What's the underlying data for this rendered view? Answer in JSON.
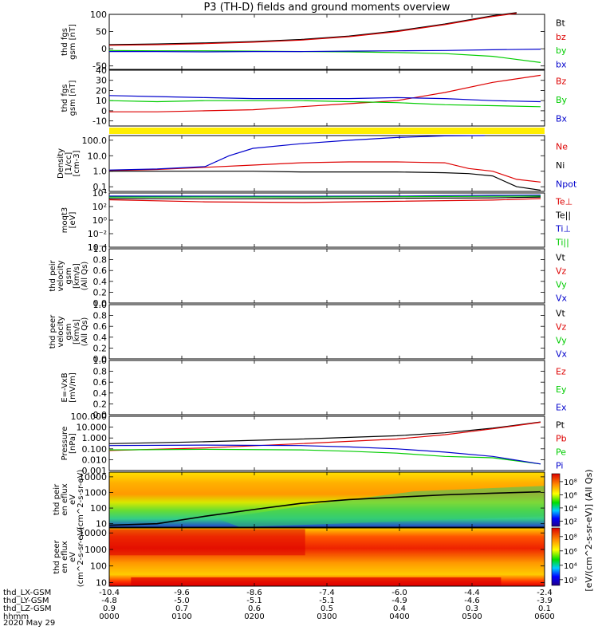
{
  "title": "P3 (TH-D) fields and ground moments overview",
  "footer": {
    "rows": [
      {
        "label": "thd_LX-GSM",
        "values": [
          "-10.4",
          "-9.6",
          "-8.6",
          "-7.4",
          "-6.0",
          "-4.4",
          "-2.4"
        ]
      },
      {
        "label": "thd_LY-GSM",
        "values": [
          "-4.8",
          "-5.0",
          "-5.1",
          "-5.1",
          "-4.9",
          "-4.6",
          "-3.9"
        ]
      },
      {
        "label": "thd_LZ-GSM",
        "values": [
          "0.9",
          "0.7",
          "0.6",
          "0.5",
          "0.4",
          "0.3",
          "0.1"
        ]
      },
      {
        "label": "hhmm",
        "values": [
          "0000",
          "0100",
          "0200",
          "0300",
          "0400",
          "0500",
          "0600"
        ]
      }
    ],
    "date": "2020 May 29"
  },
  "colors": {
    "black": "#000000",
    "red": "#dd0000",
    "green": "#00cc00",
    "blue": "#0000cc",
    "yellow": "#ffee00"
  },
  "colorbar": {
    "label": "[eV/(cm^2-s-sr-eV)] (All Qs)",
    "panel1_ticks": [
      "10^8",
      "10^6",
      "10^4",
      "10^2"
    ],
    "panel2_ticks": [
      "10^8",
      "10^6",
      "10^4",
      "10^2"
    ]
  },
  "chart_data": [
    {
      "type": "line",
      "ylabel": "thd fgs gsm [nT]",
      "ylim": [
        -60,
        100
      ],
      "yticks": [
        "100",
        "50",
        "0",
        "-50"
      ],
      "series": [
        {
          "name": "Bt",
          "color": "black",
          "x": [
            0,
            60,
            120,
            180,
            240,
            300,
            360,
            420,
            480,
            510
          ],
          "y": [
            12,
            14,
            17,
            21,
            27,
            37,
            52,
            72,
            96,
            105
          ]
        },
        {
          "name": "bz",
          "color": "red",
          "x": [
            0,
            60,
            120,
            180,
            240,
            300,
            360,
            420,
            480,
            510
          ],
          "y": [
            10,
            12,
            15,
            19,
            25,
            35,
            50,
            70,
            94,
            103
          ]
        },
        {
          "name": "by",
          "color": "green",
          "x": [
            0,
            60,
            120,
            180,
            240,
            300,
            360,
            420,
            480,
            540
          ],
          "y": [
            -5,
            -6,
            -6,
            -7,
            -8,
            -9,
            -11,
            -14,
            -22,
            -40
          ]
        },
        {
          "name": "bx",
          "color": "blue",
          "x": [
            0,
            60,
            120,
            180,
            240,
            300,
            360,
            420,
            480,
            540
          ],
          "y": [
            -8,
            -8,
            -9,
            -8,
            -8,
            -7,
            -6,
            -5,
            -3,
            -1
          ]
        }
      ]
    },
    {
      "type": "line",
      "ylabel": "thd fgs gsm [nT]",
      "ylim": [
        -15,
        40
      ],
      "yticks": [
        "40",
        "30",
        "20",
        "10",
        "0",
        "-10"
      ],
      "series": [
        {
          "name": "Bz",
          "color": "red",
          "x": [
            0,
            60,
            120,
            180,
            240,
            300,
            360,
            420,
            480,
            540
          ],
          "y": [
            -1,
            -1,
            0,
            1,
            4,
            7,
            10,
            18,
            28,
            35
          ]
        },
        {
          "name": "By",
          "color": "green",
          "x": [
            0,
            60,
            120,
            180,
            240,
            300,
            360,
            420,
            480,
            540
          ],
          "y": [
            10,
            9,
            10,
            10,
            10,
            9,
            8,
            6,
            5,
            4
          ]
        },
        {
          "name": "Bx",
          "color": "blue",
          "x": [
            0,
            60,
            120,
            180,
            240,
            300,
            360,
            420,
            480,
            540
          ],
          "y": [
            15,
            14,
            13,
            12,
            12,
            12,
            13,
            12,
            10,
            9
          ]
        }
      ]
    },
    {
      "type": "line",
      "ylabel": "Density [1/cc] [cm-3]",
      "scale": "log",
      "ylim": [
        0.05,
        200
      ],
      "yticks": [
        "100.0",
        "10.0",
        "1.0",
        "0.1"
      ],
      "series": [
        {
          "name": "Ne",
          "color": "red",
          "x": [
            0,
            60,
            120,
            180,
            240,
            300,
            360,
            420,
            450,
            480,
            510,
            540
          ],
          "y": [
            1.1,
            1.3,
            1.8,
            2.5,
            3.5,
            4.0,
            4.0,
            3.5,
            1.5,
            1.0,
            0.3,
            0.2
          ]
        },
        {
          "name": "Ni",
          "color": "black",
          "x": [
            0,
            60,
            120,
            180,
            240,
            300,
            360,
            420,
            450,
            480,
            510,
            540
          ],
          "y": [
            1.0,
            1.0,
            1.0,
            1.0,
            0.9,
            0.9,
            0.9,
            0.8,
            0.7,
            0.5,
            0.1,
            0.06
          ]
        },
        {
          "name": "Npot",
          "color": "blue",
          "x": [
            0,
            60,
            120,
            150,
            180,
            240,
            300,
            360,
            420,
            470
          ],
          "y": [
            1.2,
            1.4,
            2.0,
            10,
            30,
            60,
            100,
            150,
            190,
            200
          ]
        }
      ]
    },
    {
      "type": "line",
      "ylabel": "moqt3 [eV]",
      "scale": "log",
      "ylim": [
        0.0001,
        10000
      ],
      "yticks": [
        "10^4",
        "10^2",
        "10^0",
        "10^-2",
        "10^-4"
      ],
      "series": [
        {
          "name": "Te⊥",
          "color": "red",
          "x": [
            0,
            120,
            240,
            360,
            480,
            540
          ],
          "y": [
            1000,
            500,
            400,
            600,
            900,
            1500
          ]
        },
        {
          "name": "Te||",
          "color": "black",
          "x": [
            0,
            120,
            240,
            360,
            480,
            540
          ],
          "y": [
            1500,
            1400,
            1500,
            1700,
            1900,
            2500
          ]
        },
        {
          "name": "Ti⊥",
          "color": "blue",
          "x": [
            0,
            120,
            240,
            360,
            480,
            540
          ],
          "y": [
            3500,
            3400,
            3300,
            3500,
            4500,
            5000
          ]
        },
        {
          "name": "Ti||",
          "color": "green",
          "x": [
            0,
            120,
            240,
            360,
            480,
            540
          ],
          "y": [
            2500,
            2600,
            2600,
            2800,
            3200,
            3500
          ]
        }
      ]
    },
    {
      "type": "line",
      "ylabel": "thd peir velocity gsm [km/s] (All Qs)",
      "ylim": [
        0,
        1
      ],
      "yticks": [
        "1.0",
        "0.8",
        "0.6",
        "0.4",
        "0.2",
        "0.0"
      ],
      "series": [
        {
          "name": "Vt",
          "color": "black",
          "x": [],
          "y": []
        },
        {
          "name": "Vz",
          "color": "red",
          "x": [],
          "y": []
        },
        {
          "name": "Vy",
          "color": "green",
          "x": [],
          "y": []
        },
        {
          "name": "Vx",
          "color": "blue",
          "x": [],
          "y": []
        }
      ]
    },
    {
      "type": "line",
      "ylabel": "thd peer velocity gsm [km/s] (All Qs)",
      "ylim": [
        0,
        1
      ],
      "yticks": [
        "1.0",
        "0.8",
        "0.6",
        "0.4",
        "0.2",
        "0.0"
      ],
      "series": [
        {
          "name": "Vt",
          "color": "black",
          "x": [],
          "y": []
        },
        {
          "name": "Vz",
          "color": "red",
          "x": [],
          "y": []
        },
        {
          "name": "Vy",
          "color": "green",
          "x": [],
          "y": []
        },
        {
          "name": "Vx",
          "color": "blue",
          "x": [],
          "y": []
        }
      ]
    },
    {
      "type": "line",
      "ylabel": "E=-VxB [mV/m]",
      "ylim": [
        0,
        1
      ],
      "yticks": [
        "1.0",
        "0.8",
        "0.6",
        "0.4",
        "0.2",
        "0.0"
      ],
      "series": [
        {
          "name": "Ez",
          "color": "red",
          "x": [],
          "y": []
        },
        {
          "name": "Ey",
          "color": "green",
          "x": [],
          "y": []
        },
        {
          "name": "Ex",
          "color": "blue",
          "x": [],
          "y": []
        }
      ]
    },
    {
      "type": "line",
      "ylabel": "Pressure [nPa]",
      "scale": "log",
      "ylim": [
        0.001,
        100
      ],
      "yticks": [
        "100.000",
        "10.000",
        "1.000",
        "0.100",
        "0.010",
        "0.001"
      ],
      "series": [
        {
          "name": "Pt",
          "color": "black",
          "x": [
            0,
            120,
            240,
            360,
            420,
            480,
            540
          ],
          "y": [
            0.3,
            0.45,
            0.8,
            1.6,
            3.0,
            8.0,
            30.0
          ]
        },
        {
          "name": "Pb",
          "color": "red",
          "x": [
            0,
            120,
            240,
            360,
            420,
            480,
            540
          ],
          "y": [
            0.07,
            0.12,
            0.3,
            0.8,
            2.0,
            7.0,
            28.0
          ]
        },
        {
          "name": "Pe",
          "color": "green",
          "x": [
            0,
            120,
            240,
            300,
            360,
            420,
            480,
            540
          ],
          "y": [
            0.08,
            0.09,
            0.08,
            0.06,
            0.04,
            0.02,
            0.015,
            0.004
          ]
        },
        {
          "name": "Pi",
          "color": "blue",
          "x": [
            0,
            120,
            240,
            300,
            360,
            420,
            480,
            540
          ],
          "y": [
            0.2,
            0.22,
            0.2,
            0.15,
            0.1,
            0.05,
            0.02,
            0.004
          ]
        }
      ]
    },
    {
      "type": "heatmap",
      "ylabel": "thd peir en eflux eV (cm^2-s-sr-eV)",
      "scale": "log",
      "ylim": [
        6,
        20000
      ],
      "yticks": [
        "10000",
        "1000",
        "100",
        "10"
      ],
      "colorscale": "rainbow",
      "ridge": {
        "color": "black",
        "x": [
          0,
          60,
          120,
          180,
          240,
          300,
          360,
          420,
          480,
          540
        ],
        "y": [
          8,
          10,
          30,
          80,
          200,
          350,
          500,
          700,
          900,
          1100
        ]
      }
    },
    {
      "type": "heatmap",
      "ylabel": "thd peer en eflux eV (cm^2-s-sr-eV)",
      "scale": "log",
      "ylim": [
        6,
        20000
      ],
      "yticks": [
        "10000",
        "1000",
        "100",
        "10"
      ],
      "colorscale": "rainbow"
    }
  ]
}
